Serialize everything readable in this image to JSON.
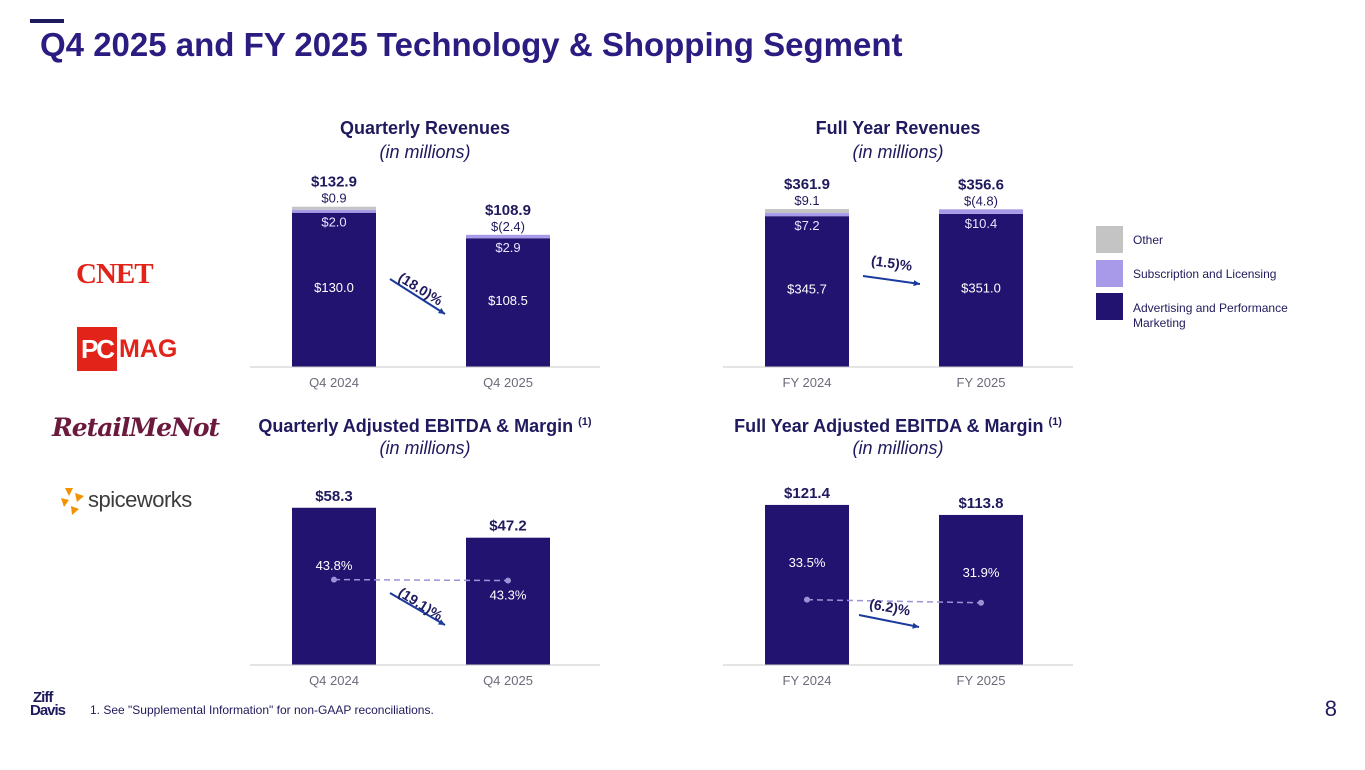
{
  "title": "Q4 2025 and FY 2025 Technology & Shopping Segment",
  "colors": {
    "advertising": "#221370",
    "subscription": "#a89ae8",
    "other": "#c4c4c4",
    "arrow": "#1a3a9e",
    "margin_line": "#9a94d6"
  },
  "legend": [
    {
      "name": "Other",
      "color": "#c4c4c4"
    },
    {
      "name": "Subscription and Licensing",
      "color": "#a89ae8"
    },
    {
      "name": "Advertising and Performance Marketing",
      "color": "#221370"
    }
  ],
  "logos": {
    "cnet": "CNET",
    "pcmag_pc": "PC",
    "pcmag_mag": "MAG",
    "retailmenot": "RetailMeNot",
    "spiceworks": "spiceworks",
    "ziffdavis_top": "Ziff",
    "ziffdavis_bottom": "Davis"
  },
  "footnote": "1.  See \"Supplemental Information\" for non-GAAP reconciliations.",
  "page_number": "8",
  "chart_data": [
    {
      "id": "quarterly-revenues",
      "type": "bar",
      "stacked": true,
      "title": "Quarterly Revenues",
      "subtitle": "(in millions)",
      "footnote_ref": "",
      "categories": [
        "Q4 2024",
        "Q4 2025"
      ],
      "totals": [
        132.9,
        108.9
      ],
      "total_labels": [
        "$132.9",
        "$108.9"
      ],
      "ylim": [
        0,
        150
      ],
      "series": [
        {
          "name": "Advertising and Performance Marketing",
          "values": [
            130.0,
            108.5
          ],
          "labels": [
            "$130.0",
            "$108.5"
          ]
        },
        {
          "name": "Subscription and Licensing",
          "values": [
            2.0,
            2.9
          ],
          "labels": [
            "$2.0",
            "$2.9"
          ]
        },
        {
          "name": "Other",
          "values": [
            0.9,
            -2.4
          ],
          "labels": [
            "$0.9",
            "$(2.4)"
          ]
        }
      ],
      "change_label": "(18.0)%"
    },
    {
      "id": "full-year-revenues",
      "type": "bar",
      "stacked": true,
      "title": "Full Year Revenues",
      "subtitle": "(in millions)",
      "footnote_ref": "",
      "categories": [
        "FY 2024",
        "FY 2025"
      ],
      "totals": [
        361.9,
        356.6
      ],
      "total_labels": [
        "$361.9",
        "$356.6"
      ],
      "ylim": [
        0,
        408
      ],
      "series": [
        {
          "name": "Advertising and Performance Marketing",
          "values": [
            345.7,
            351.0
          ],
          "labels": [
            "$345.7",
            "$351.0"
          ]
        },
        {
          "name": "Subscription and Licensing",
          "values": [
            7.2,
            10.4
          ],
          "labels": [
            "$7.2",
            "$10.4"
          ]
        },
        {
          "name": "Other",
          "values": [
            9.1,
            -4.8
          ],
          "labels": [
            "$9.1",
            "$(4.8)"
          ]
        }
      ],
      "change_label": "(1.5)%"
    },
    {
      "id": "quarterly-ebitda",
      "type": "bar",
      "title": "Quarterly Adjusted EBITDA & Margin",
      "subtitle": "(in millions)",
      "footnote_ref": "(1)",
      "categories": [
        "Q4 2024",
        "Q4 2025"
      ],
      "values": [
        58.3,
        47.2
      ],
      "value_labels": [
        "$58.3",
        "$47.2"
      ],
      "margins": [
        43.8,
        43.3
      ],
      "margin_labels": [
        "43.8%",
        "43.3%"
      ],
      "ylim": [
        0,
        66
      ],
      "change_label": "(19.1)%"
    },
    {
      "id": "full-year-ebitda",
      "type": "bar",
      "title": "Full Year Adjusted EBITDA & Margin",
      "subtitle": "(in millions)",
      "footnote_ref": "(1)",
      "categories": [
        "FY 2024",
        "FY 2025"
      ],
      "values": [
        121.4,
        113.8
      ],
      "value_labels": [
        "$121.4",
        "$113.8"
      ],
      "margins": [
        33.5,
        31.9
      ],
      "margin_labels": [
        "33.5%",
        "31.9%"
      ],
      "ylim": [
        0,
        135
      ],
      "change_label": "(6.2)%"
    }
  ]
}
